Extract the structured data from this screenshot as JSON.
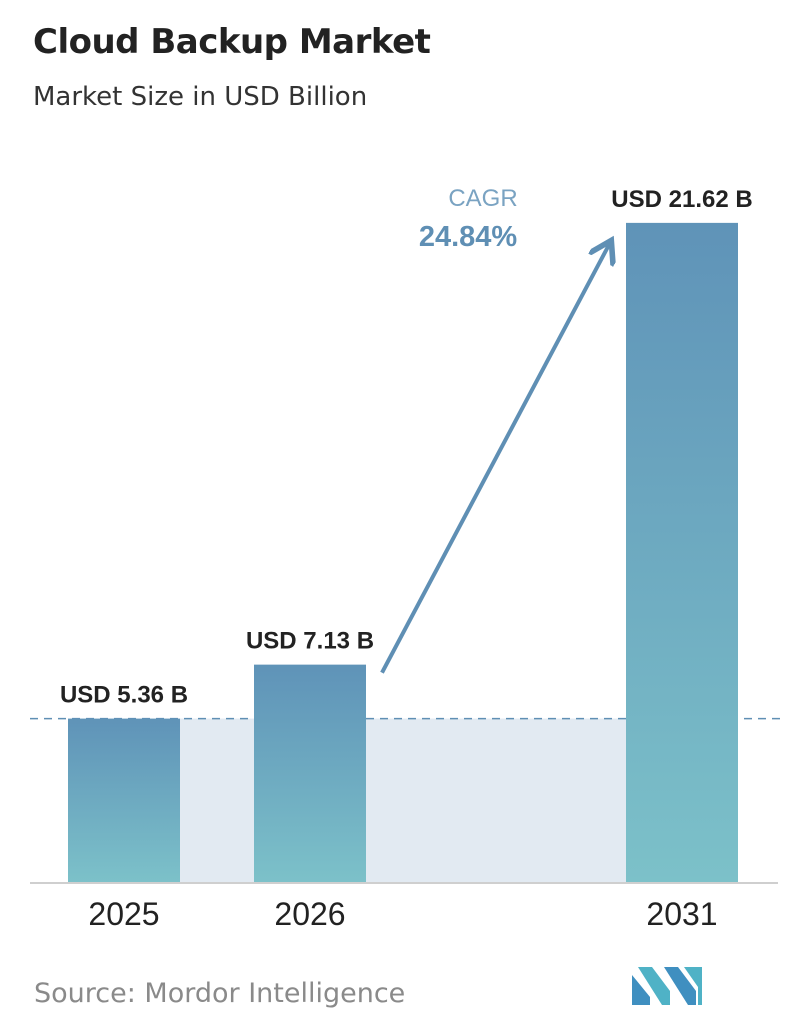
{
  "header": {
    "title": "Cloud Backup Market",
    "subtitle": "Market Size in USD Billion"
  },
  "chart_data": {
    "type": "bar",
    "categories": [
      "2025",
      "2026",
      "2031"
    ],
    "values": [
      5.36,
      7.13,
      21.62
    ],
    "value_labels": [
      "USD 5.36 B",
      "USD 7.13 B",
      "USD 21.62 B"
    ],
    "title": "Cloud Backup Market",
    "subtitle": "Market Size in USD Billion",
    "ylim": [
      0,
      22.6
    ],
    "grid": false,
    "annotation": {
      "label": "CAGR",
      "value": "24.84%"
    },
    "colors": {
      "bar_top": "#5f93b8",
      "bar_bottom": "#7cc1c9",
      "band": "#e2eaf2",
      "arrow": "#5f8fb4"
    }
  },
  "footer": {
    "source": "Source: Mordor Intelligence",
    "logo_icon": "mordor-intelligence-logo-icon"
  }
}
